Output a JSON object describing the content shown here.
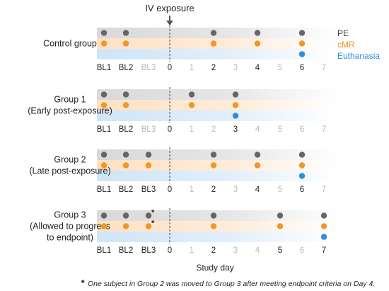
{
  "header": {
    "exposure_label": "IV exposure"
  },
  "legend": {
    "pe": {
      "label": "PE",
      "color": "#666666"
    },
    "cmr": {
      "label": "cMR",
      "color": "#f0962a"
    },
    "euthanasia": {
      "label": "Euthanasia",
      "color": "#2f8ee0"
    }
  },
  "groups": [
    {
      "label_lines": [
        "Control group"
      ],
      "ticks": [
        "BL1",
        "BL2",
        "BL3",
        "0",
        "1",
        "2",
        "3",
        "4",
        "5",
        "6",
        "7"
      ],
      "active_ticks": [
        0,
        1,
        3,
        5,
        7,
        9
      ],
      "pe_days": [
        0,
        1,
        5,
        7,
        9
      ],
      "cmr_days": [
        0,
        1,
        5,
        7,
        9
      ],
      "euth_days": [
        9
      ],
      "stars": []
    },
    {
      "label_lines": [
        "Group 1",
        "(Early post-exposure)"
      ],
      "ticks": [
        "BL1",
        "BL2",
        "BL3",
        "0",
        "1",
        "2",
        "3",
        "4",
        "5",
        "6",
        "7"
      ],
      "active_ticks": [
        0,
        1,
        3,
        6
      ],
      "pe_days": [
        0,
        1,
        4,
        6
      ],
      "cmr_days": [
        0,
        1,
        4,
        6
      ],
      "euth_days": [
        6
      ],
      "stars": []
    },
    {
      "label_lines": [
        "Group 2",
        "(Late post-exposure)"
      ],
      "ticks": [
        "BL1",
        "BL2",
        "BL3",
        "0",
        "1",
        "2",
        "3",
        "4",
        "5",
        "6",
        "7"
      ],
      "active_ticks": [
        0,
        1,
        2,
        3,
        5,
        7,
        9
      ],
      "pe_days": [
        0,
        1,
        2,
        5,
        7,
        9
      ],
      "cmr_days": [
        0,
        1,
        2,
        5,
        7,
        9
      ],
      "euth_days": [
        9
      ],
      "stars": []
    },
    {
      "label_lines": [
        "Group 3",
        "(Allowed to progress",
        "to endpoint)"
      ],
      "ticks": [
        "BL1",
        "BL2",
        "BL3",
        "0",
        "1",
        "2",
        "3",
        "4",
        "5",
        "6",
        "7"
      ],
      "active_ticks": [
        0,
        1,
        2,
        3,
        5,
        8,
        10
      ],
      "pe_days": [
        0,
        1,
        2,
        5,
        8,
        10
      ],
      "cmr_days": [
        0,
        1,
        2,
        5,
        8,
        10
      ],
      "euth_days": [
        10
      ],
      "stars": [
        2
      ]
    }
  ],
  "axis": {
    "xlabel": "Study day"
  },
  "footnote": {
    "star": "*",
    "text": "One subject in Group 2 was moved to Group 3 after meeting endpoint criteria on Day 4."
  }
}
